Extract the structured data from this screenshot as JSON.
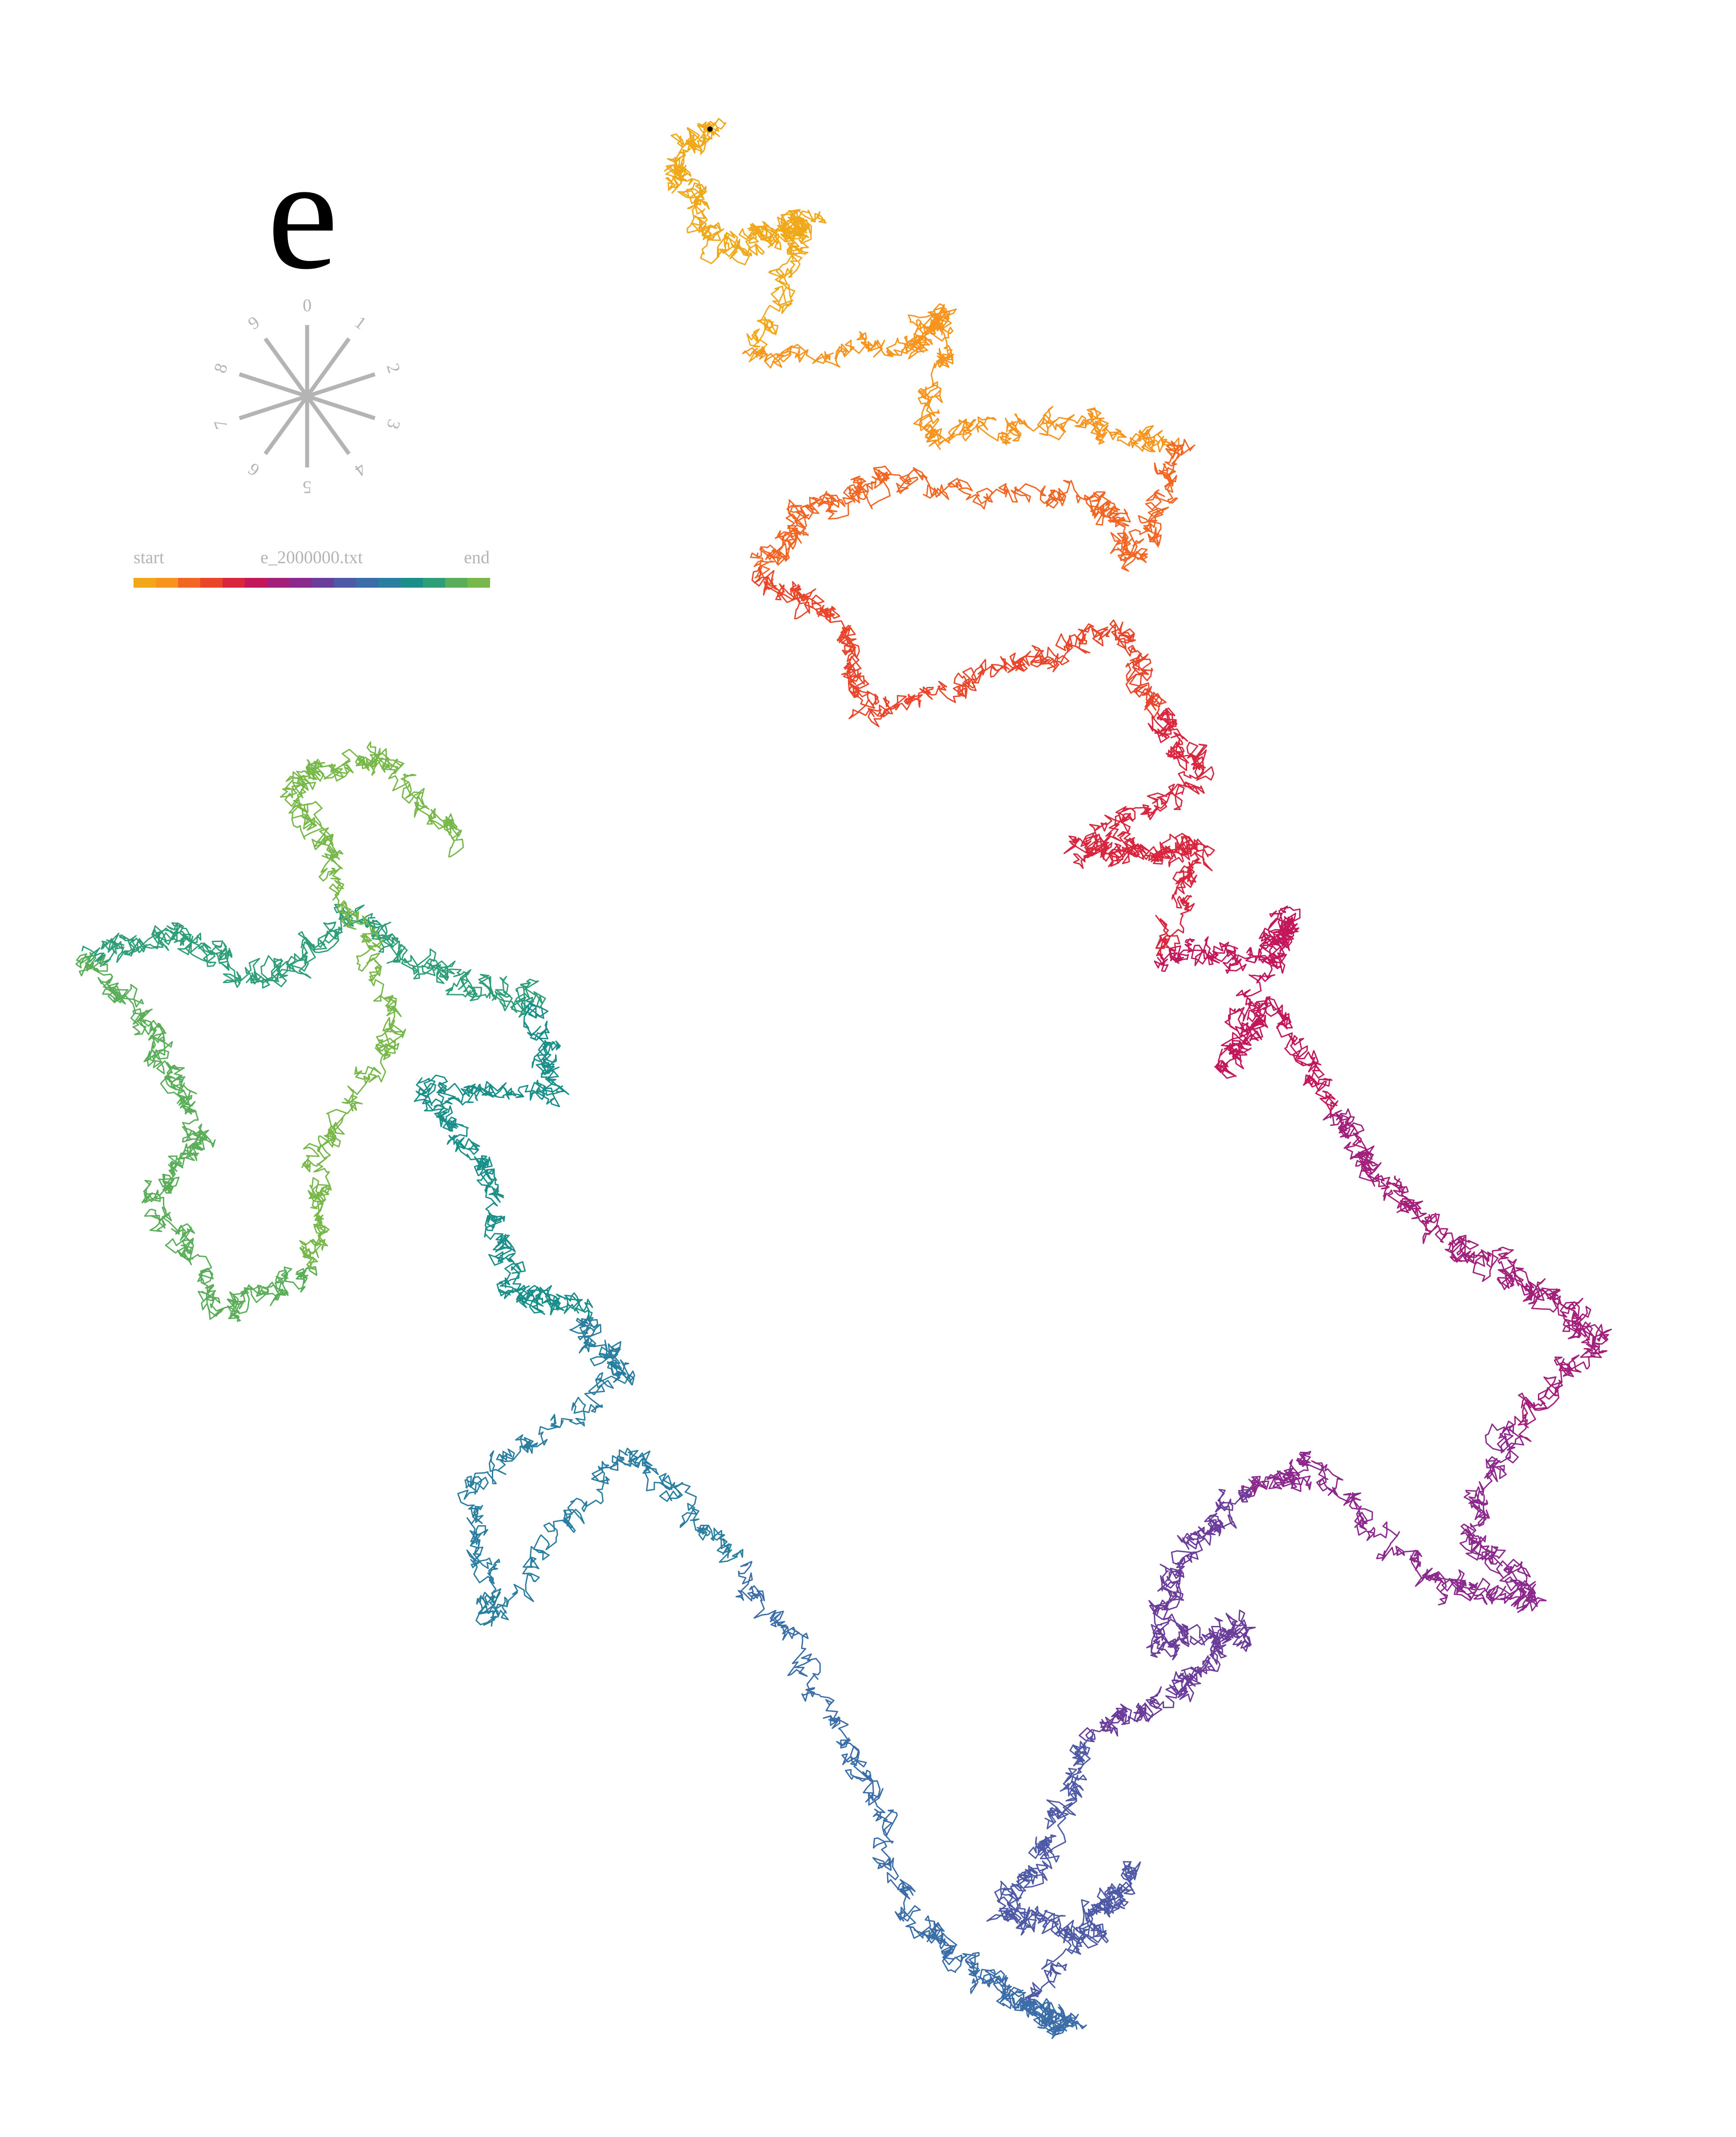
{
  "title": "e",
  "compass": {
    "digits": [
      "0",
      "1",
      "2",
      "3",
      "4",
      "5",
      "6",
      "7",
      "8",
      "9"
    ],
    "spoke_color": "#b4b4b4",
    "label_color": "#b4b4b4"
  },
  "legend": {
    "start_label": "start",
    "file_label": "e_2000000.txt",
    "end_label": "end",
    "gradient_colors": [
      "#f0a818",
      "#f7941d",
      "#f26522",
      "#e8452a",
      "#d7263d",
      "#c2185b",
      "#a21f7a",
      "#8b2a8c",
      "#6a3d9a",
      "#4e5aa6",
      "#3b6ea8",
      "#2a7ea0",
      "#1a8f8a",
      "#2e9e78",
      "#5aae5a",
      "#78b84a"
    ]
  },
  "walk": {
    "start_marker_color": "#000000",
    "path_colors": [
      "#f0a818",
      "#f7941d",
      "#f26522",
      "#e8452a",
      "#d7263d",
      "#c2185b",
      "#a21f7a",
      "#8b2a8c",
      "#6a3d9a",
      "#4e5aa6",
      "#3b6ea8",
      "#2a7ea0",
      "#1a8f8a",
      "#2e9e78",
      "#5aae5a",
      "#78b84a"
    ]
  }
}
